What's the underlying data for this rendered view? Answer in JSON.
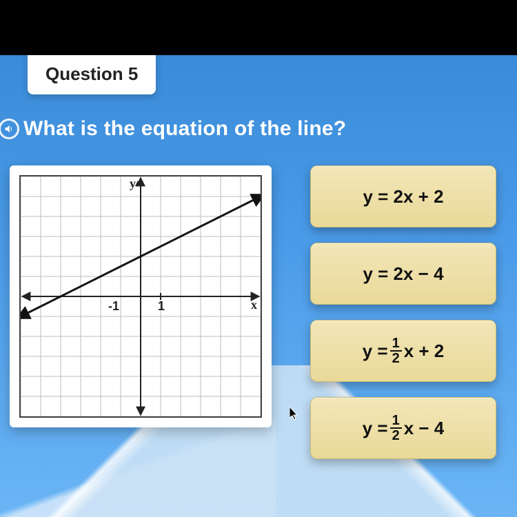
{
  "question": {
    "label": "Question 5",
    "prompt": "What is the equation of the line?"
  },
  "graph": {
    "type": "line",
    "x_axis_label": "x",
    "y_axis_label": "y",
    "xlim": [
      -6,
      6
    ],
    "ylim": [
      -6,
      6
    ],
    "xtick_step": 1,
    "ytick_step": 1,
    "tick_label_x": "1",
    "tick_label_neg_x": "-1",
    "grid_color": "#bdbdbd",
    "axis_color": "#222222",
    "background_color": "#ffffff",
    "line": {
      "points": [
        [
          -6,
          -1
        ],
        [
          6,
          5
        ]
      ],
      "slope": 0.5,
      "intercept": 2,
      "color": "#111111",
      "width": 3,
      "arrows": true
    }
  },
  "answers": {
    "a": {
      "display": "y = 2x + 2",
      "latex": "y = 2x + 2"
    },
    "b": {
      "display": "y = 2x − 4",
      "latex": "y = 2x - 4"
    },
    "c": {
      "prefix": "y = ",
      "frac_n": "1",
      "frac_d": "2",
      "suffix": "x + 2",
      "latex": "y = (1/2)x + 2"
    },
    "d": {
      "prefix": "y = ",
      "frac_n": "1",
      "frac_d": "2",
      "suffix": "x − 4",
      "latex": "y = (1/2)x - 4"
    }
  },
  "style": {
    "answer_bg": "#f2e6b8",
    "answer_border": "#c9b970",
    "page_bg_top": "#3a8bd8",
    "page_bg_bottom": "#6bb5f5",
    "prompt_color": "#ffffff"
  }
}
